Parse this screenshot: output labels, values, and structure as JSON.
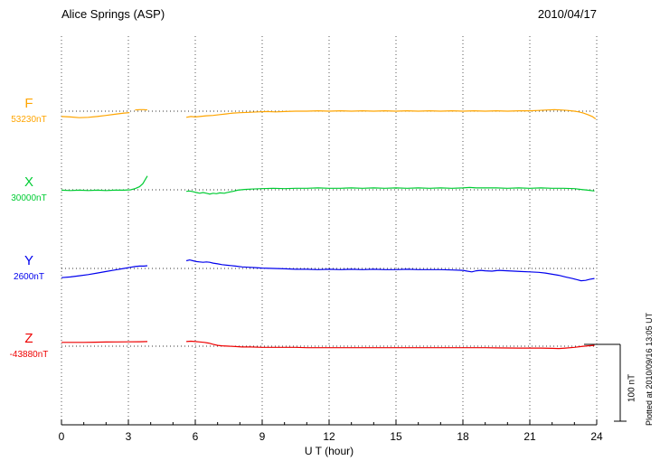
{
  "header": {
    "title": "Alice Springs (ASP)",
    "date": "2010/04/17"
  },
  "chart_data": {
    "type": "line",
    "title": "Alice Springs (ASP)",
    "date": "2010/04/17",
    "xlabel": "U T (hour)",
    "xlim": [
      0,
      24
    ],
    "x_ticks": [
      0,
      3,
      6,
      9,
      12,
      15,
      18,
      21,
      24
    ],
    "grid": "dotted vertical lines at major x ticks; dotted horizontal baseline per trace",
    "scale_bar": {
      "label": "100 nT",
      "value_nT": 100
    },
    "footnote": "Plotted at 2010/09/16 13:05 UT",
    "unit_note": "series values are offsets in nT from each trace baseline label; data gap between hour 3.9 and 5.6",
    "series": [
      {
        "name": "F",
        "baseline_label": "53230nT",
        "color": "#FFA500",
        "segments": [
          [
            [
              0,
              -7
            ],
            [
              0.4,
              -7.5
            ],
            [
              0.8,
              -8.5
            ],
            [
              1.2,
              -8
            ],
            [
              1.6,
              -7
            ],
            [
              2,
              -5.5
            ],
            [
              2.4,
              -4
            ],
            [
              2.8,
              -2.5
            ],
            [
              3.05,
              -2
            ]
          ],
          [
            [
              3.3,
              1.5
            ],
            [
              3.5,
              2
            ],
            [
              3.7,
              2
            ],
            [
              3.85,
              1.5
            ]
          ],
          [
            [
              5.6,
              -8
            ],
            [
              5.8,
              -7
            ],
            [
              6,
              -7.5
            ],
            [
              6.2,
              -7
            ],
            [
              6.5,
              -6
            ],
            [
              6.8,
              -5.5
            ],
            [
              7.1,
              -4.5
            ],
            [
              7.4,
              -3.5
            ],
            [
              7.7,
              -2.5
            ],
            [
              8,
              -2
            ],
            [
              8.4,
              -1.5
            ],
            [
              8.8,
              -1
            ],
            [
              9.2,
              -0.5
            ],
            [
              9.6,
              -1
            ],
            [
              10,
              -0.5
            ],
            [
              10.5,
              0
            ],
            [
              11,
              0
            ],
            [
              11.5,
              0.5
            ],
            [
              12,
              0
            ],
            [
              12.5,
              0.5
            ],
            [
              13,
              0
            ],
            [
              13.5,
              0.5
            ],
            [
              14,
              0
            ],
            [
              14.5,
              0.5
            ],
            [
              15,
              0
            ],
            [
              15.5,
              0.5
            ],
            [
              16,
              0
            ],
            [
              16.5,
              0.5
            ],
            [
              17,
              0
            ],
            [
              17.5,
              0.5
            ],
            [
              18,
              0
            ],
            [
              18.5,
              0.5
            ],
            [
              19,
              0
            ],
            [
              19.5,
              0.5
            ],
            [
              20,
              0
            ],
            [
              20.5,
              0.5
            ],
            [
              21,
              0.5
            ],
            [
              21.4,
              1
            ],
            [
              21.8,
              1.5
            ],
            [
              22.1,
              2
            ],
            [
              22.4,
              1.5
            ],
            [
              22.7,
              1
            ],
            [
              23,
              0
            ],
            [
              23.2,
              -1
            ],
            [
              23.4,
              -2.5
            ],
            [
              23.6,
              -4.5
            ],
            [
              23.8,
              -7
            ],
            [
              23.95,
              -10
            ]
          ]
        ]
      },
      {
        "name": "X",
        "baseline_label": "30000nT",
        "color": "#00CC33",
        "segments": [
          [
            [
              0,
              -0.5
            ],
            [
              0.4,
              -1
            ],
            [
              0.8,
              -0.5
            ],
            [
              1.2,
              -1
            ],
            [
              1.6,
              -0.5
            ],
            [
              2,
              -1
            ],
            [
              2.4,
              -0.5
            ],
            [
              2.8,
              -0.5
            ],
            [
              3.1,
              0
            ],
            [
              3.3,
              1.5
            ],
            [
              3.5,
              4
            ],
            [
              3.65,
              8
            ],
            [
              3.75,
              13
            ],
            [
              3.85,
              18
            ]
          ],
          [
            [
              5.6,
              -2
            ],
            [
              5.75,
              -1.5
            ],
            [
              5.9,
              -2.5
            ],
            [
              6.05,
              -3.5
            ],
            [
              6.2,
              -4.5
            ],
            [
              6.35,
              -3.5
            ],
            [
              6.5,
              -4.5
            ],
            [
              6.65,
              -5.5
            ],
            [
              6.8,
              -4.5
            ],
            [
              6.95,
              -5
            ],
            [
              7.1,
              -4
            ],
            [
              7.3,
              -4.5
            ],
            [
              7.5,
              -3
            ],
            [
              7.7,
              -2
            ],
            [
              7.9,
              -0.5
            ],
            [
              8.2,
              0.5
            ],
            [
              8.5,
              1
            ],
            [
              9,
              1.5
            ],
            [
              9.5,
              2
            ],
            [
              10,
              1.5
            ],
            [
              10.5,
              2
            ],
            [
              11,
              2
            ],
            [
              11.5,
              2.5
            ],
            [
              12,
              2
            ],
            [
              12.5,
              2
            ],
            [
              13,
              2.5
            ],
            [
              13.5,
              2
            ],
            [
              14,
              2.5
            ],
            [
              14.5,
              2
            ],
            [
              15,
              2.5
            ],
            [
              15.5,
              2
            ],
            [
              16,
              2.5
            ],
            [
              16.5,
              2
            ],
            [
              17,
              2.5
            ],
            [
              17.5,
              2
            ],
            [
              18,
              2.5
            ],
            [
              18.3,
              3
            ],
            [
              18.6,
              2.5
            ],
            [
              19,
              2.5
            ],
            [
              19.5,
              2.5
            ],
            [
              20,
              2
            ],
            [
              20.5,
              2.5
            ],
            [
              21,
              2
            ],
            [
              21.5,
              2.5
            ],
            [
              22,
              2
            ],
            [
              22.5,
              2
            ],
            [
              23,
              1.5
            ],
            [
              23.3,
              0.5
            ],
            [
              23.6,
              -0.5
            ],
            [
              23.9,
              -1.5
            ]
          ]
        ]
      },
      {
        "name": "Y",
        "baseline_label": "2600nT",
        "color": "#0000EE",
        "segments": [
          [
            [
              0,
              -12
            ],
            [
              0.4,
              -11
            ],
            [
              0.8,
              -9.5
            ],
            [
              1.2,
              -8
            ],
            [
              1.6,
              -6
            ],
            [
              2,
              -4
            ],
            [
              2.4,
              -2
            ],
            [
              2.8,
              0
            ],
            [
              3.1,
              1.5
            ],
            [
              3.3,
              2.5
            ],
            [
              3.5,
              3
            ],
            [
              3.7,
              3
            ],
            [
              3.85,
              3.5
            ]
          ],
          [
            [
              5.6,
              10
            ],
            [
              5.75,
              11
            ],
            [
              5.9,
              10
            ],
            [
              6.05,
              9
            ],
            [
              6.2,
              8.5
            ],
            [
              6.35,
              8
            ],
            [
              6.5,
              8.5
            ],
            [
              6.65,
              8
            ],
            [
              6.8,
              7
            ],
            [
              7,
              6
            ],
            [
              7.2,
              5
            ],
            [
              7.5,
              4
            ],
            [
              7.8,
              3
            ],
            [
              8.1,
              2
            ],
            [
              8.4,
              1.5
            ],
            [
              8.7,
              1
            ],
            [
              9,
              0.5
            ],
            [
              9.5,
              0
            ],
            [
              10,
              -0.5
            ],
            [
              10.5,
              -1
            ],
            [
              11,
              -1
            ],
            [
              11.5,
              -1.5
            ],
            [
              12,
              -1
            ],
            [
              12.5,
              -1.5
            ],
            [
              13,
              -1
            ],
            [
              13.5,
              -1.5
            ],
            [
              14,
              -1
            ],
            [
              14.5,
              -1.5
            ],
            [
              15,
              -1.5
            ],
            [
              15.5,
              -1
            ],
            [
              16,
              -1.5
            ],
            [
              16.5,
              -1.5
            ],
            [
              17,
              -1.5
            ],
            [
              17.5,
              -2
            ],
            [
              18,
              -2.5
            ],
            [
              18.2,
              -3.5
            ],
            [
              18.4,
              -4.5
            ],
            [
              18.6,
              -3
            ],
            [
              18.8,
              -2.5
            ],
            [
              19,
              -3
            ],
            [
              19.3,
              -3.5
            ],
            [
              19.6,
              -2.5
            ],
            [
              20,
              -3
            ],
            [
              20.3,
              -3.5
            ],
            [
              20.6,
              -4
            ],
            [
              21,
              -4.5
            ],
            [
              21.4,
              -5
            ],
            [
              21.7,
              -6
            ],
            [
              22,
              -7.5
            ],
            [
              22.3,
              -9
            ],
            [
              22.6,
              -11
            ],
            [
              22.9,
              -13
            ],
            [
              23.1,
              -14.5
            ],
            [
              23.3,
              -16
            ],
            [
              23.5,
              -15.5
            ],
            [
              23.7,
              -14
            ],
            [
              23.9,
              -13
            ]
          ]
        ]
      },
      {
        "name": "Z",
        "baseline_label": "-43880nT",
        "color": "#EE0000",
        "segments": [
          [
            [
              0,
              5
            ],
            [
              0.5,
              5
            ],
            [
              1,
              5
            ],
            [
              1.5,
              5.2
            ],
            [
              2,
              5.4
            ],
            [
              2.5,
              5.5
            ],
            [
              3,
              5.6
            ],
            [
              3.5,
              5.8
            ],
            [
              3.85,
              6
            ]
          ],
          [
            [
              5.6,
              6
            ],
            [
              5.8,
              6.5
            ],
            [
              6,
              6
            ],
            [
              6.2,
              5.5
            ],
            [
              6.4,
              5
            ],
            [
              6.6,
              4
            ],
            [
              6.8,
              2.5
            ],
            [
              7,
              1
            ],
            [
              7.2,
              0.5
            ],
            [
              7.5,
              0
            ],
            [
              7.8,
              -0.5
            ],
            [
              8.1,
              -1
            ],
            [
              8.5,
              -1
            ],
            [
              9,
              -1.5
            ],
            [
              9.5,
              -1.5
            ],
            [
              10,
              -1.5
            ],
            [
              10.5,
              -1.5
            ],
            [
              11,
              -2
            ],
            [
              11.5,
              -2
            ],
            [
              12,
              -2
            ],
            [
              12.5,
              -2
            ],
            [
              13,
              -2
            ],
            [
              13.5,
              -2
            ],
            [
              14,
              -2
            ],
            [
              14.5,
              -2
            ],
            [
              15,
              -2
            ],
            [
              15.5,
              -2
            ],
            [
              16,
              -2
            ],
            [
              16.5,
              -2
            ],
            [
              17,
              -2
            ],
            [
              17.5,
              -2
            ],
            [
              18,
              -2
            ],
            [
              18.5,
              -2
            ],
            [
              19,
              -2
            ],
            [
              19.5,
              -2.2
            ],
            [
              20,
              -2.4
            ],
            [
              20.5,
              -2.5
            ],
            [
              21,
              -2.5
            ],
            [
              21.5,
              -2.5
            ],
            [
              22,
              -2.8
            ],
            [
              22.3,
              -3
            ],
            [
              22.6,
              -2.5
            ],
            [
              23,
              -1.5
            ],
            [
              23.3,
              -0.5
            ],
            [
              23.6,
              0.5
            ],
            [
              23.9,
              1
            ]
          ]
        ]
      }
    ]
  }
}
